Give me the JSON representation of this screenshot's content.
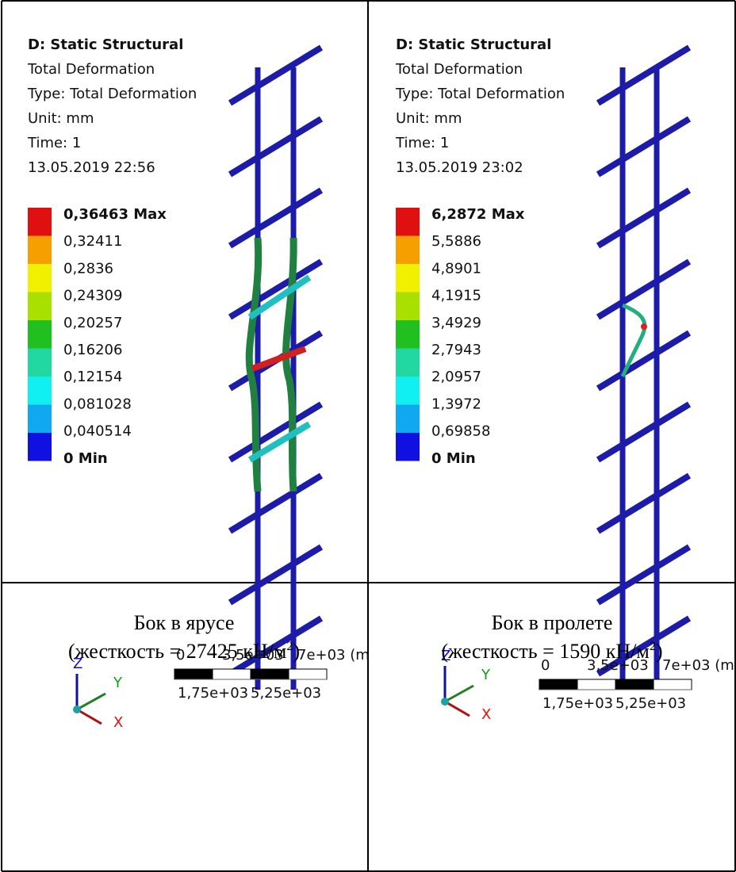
{
  "panels": [
    {
      "header": [
        "D: Static Structural",
        "Total Deformation",
        "Type: Total Deformation",
        "Unit: mm",
        "Time: 1",
        "13.05.2019 22:56"
      ],
      "legend": [
        "0,36463 Max",
        "0,32411",
        "0,2836",
        "0,24309",
        "0,20257",
        "0,16206",
        "0,12154",
        "0,081028",
        "0,040514",
        "0 Min"
      ],
      "axes": [
        "Z",
        "Y",
        "X"
      ],
      "scale_top": [
        "0",
        "3,5e+03",
        "7e+03 (m"
      ],
      "scale_bottom": [
        "1,75e+03",
        "5,25e+03"
      ],
      "caption": {
        "line1": "Бок в ярусе",
        "line2": "(жесткость = 27425 кН/м",
        "sup": "2",
        "end": ")"
      }
    },
    {
      "header": [
        "D: Static Structural",
        "Total Deformation",
        "Type: Total Deformation",
        "Unit: mm",
        "Time: 1",
        "13.05.2019 23:02"
      ],
      "legend": [
        "6,2872 Max",
        "5,5886",
        "4,8901",
        "4,1915",
        "3,4929",
        "2,7943",
        "2,0957",
        "1,3972",
        "0,69858",
        "0 Min"
      ],
      "axes": [
        "Z",
        "Y",
        "X"
      ],
      "scale_top": [
        "0",
        "3,5e+03",
        "7e+03 (m"
      ],
      "scale_bottom": [
        "1,75e+03",
        "5,25e+03"
      ],
      "caption": {
        "line1": "Бок в пролете",
        "line2": "(жесткость = 1590 кН/м",
        "sup": "2",
        "end": ")"
      }
    }
  ]
}
